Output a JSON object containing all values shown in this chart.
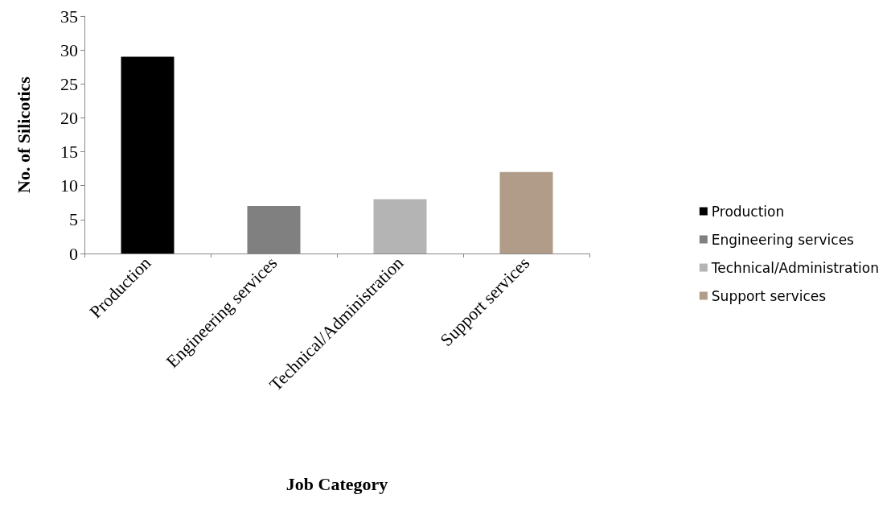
{
  "chart_data": {
    "type": "bar",
    "xlabel": "Job Category",
    "ylabel": "No. of Silicotics",
    "categories": [
      "Production",
      "Engineering services",
      "Technical/Administration",
      "Support services"
    ],
    "series": [
      {
        "name": "Production",
        "color": "#000000",
        "values": [
          29,
          null,
          null,
          null
        ]
      },
      {
        "name": "Engineering services",
        "color": "#808080",
        "values": [
          null,
          7,
          null,
          null
        ]
      },
      {
        "name": "Technical/Administration",
        "color": "#b4b4b4",
        "values": [
          null,
          null,
          8,
          null
        ]
      },
      {
        "name": "Support services",
        "color": "#b09c88",
        "values": [
          null,
          null,
          null,
          12
        ]
      }
    ],
    "ylim": [
      0,
      35
    ],
    "yticks": [
      0,
      5,
      10,
      15,
      20,
      25,
      30,
      35
    ],
    "grid": false,
    "legend": "right"
  }
}
